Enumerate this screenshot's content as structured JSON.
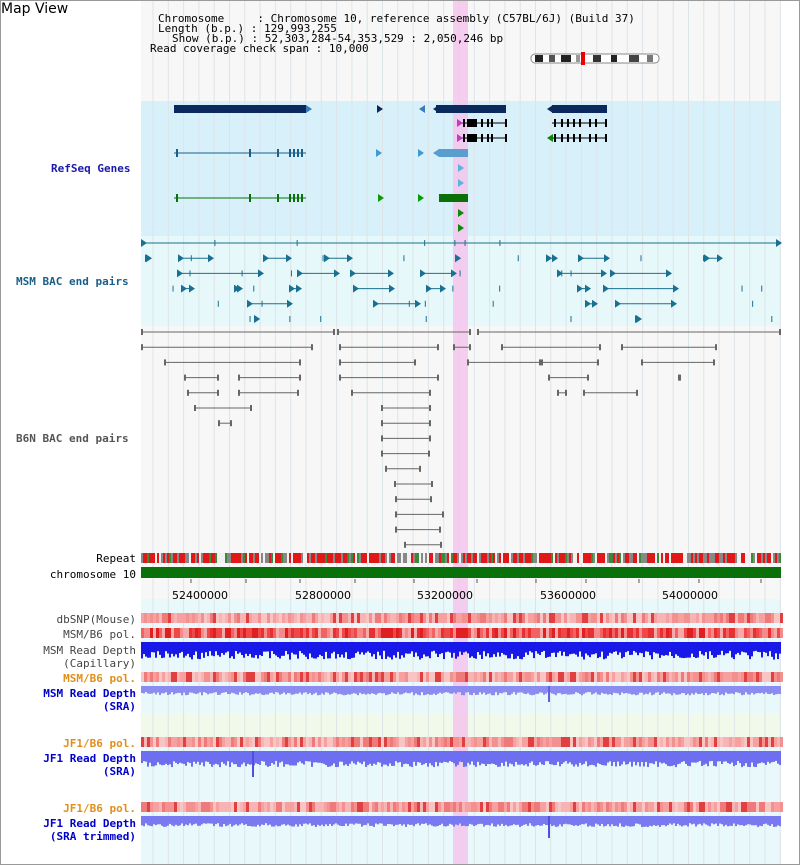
{
  "title": "Map View",
  "info": {
    "chromosome_label": "Chromosome",
    "chromosome_value": "Chromosome 10, reference assembly (C57BL/6J) (Build 37)",
    "length_label": "Length (b.p.)",
    "length_value": "129,993,255",
    "show_label": "Show (b.p.)",
    "show_value": "52,303,284-54,353,529 : 2,050,246 bp",
    "coverage_label": "Read coverage check span",
    "coverage_value": "10,000"
  },
  "tracks": {
    "refseq": "RefSeq Genes",
    "msm_bac": "MSM BAC end pairs",
    "b6n_bac": "B6N BAC end pairs",
    "repeat": "Repeat",
    "chromosome": "chromosome 10",
    "dbsnp": "dbSNP(Mouse)",
    "msm_b6_pol": "MSM/B6 pol.",
    "msm_depth_cap_1": "MSM Read Depth",
    "msm_depth_cap_2": "(Capillary)",
    "msm_b6_pol_sra": "MSM/B6 pol.",
    "msm_depth_sra_1": "MSM Read Depth",
    "msm_depth_sra_2": "(SRA)",
    "jf1_b6_pol": "JF1/B6 pol.",
    "jf1_depth_sra_1": "JF1 Read Depth",
    "jf1_depth_sra_2": "(SRA)",
    "jf1_b6_pol_2": "JF1/B6 pol.",
    "jf1_depth_trim_1": "JF1 Read Depth",
    "jf1_depth_trim_2": "(SRA trimmed)"
  },
  "axis_ticks": [
    "52400000",
    "52800000",
    "53200000",
    "53600000",
    "54000000"
  ],
  "colors": {
    "refseq_label": "#1a1aaa",
    "msm_label": "#1a5f8a",
    "b6n_label": "#555555",
    "orange_label": "#e0901a",
    "blue_label": "#0000cc",
    "highlight": "#f4c6ec",
    "chrom_bar": "#0a700a",
    "refseq_bg": "#d8f0fa",
    "msm_bg": "#e6f8fa"
  }
}
